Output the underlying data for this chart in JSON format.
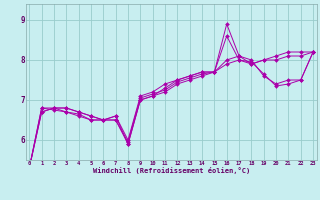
{
  "xlabel": "Windchill (Refroidissement éolien,°C)",
  "bg_color": "#c8eef0",
  "line_color": "#aa00aa",
  "grid_color": "#99cccc",
  "x_ticks": [
    0,
    1,
    2,
    3,
    4,
    5,
    6,
    7,
    8,
    9,
    10,
    11,
    12,
    13,
    14,
    15,
    16,
    17,
    18,
    19,
    20,
    21,
    22,
    23
  ],
  "y_ticks": [
    6,
    7,
    8,
    9
  ],
  "xlim": [
    -0.3,
    23.3
  ],
  "ylim": [
    5.5,
    9.4
  ],
  "series": [
    [
      5.3,
      6.7,
      6.8,
      6.8,
      6.7,
      6.6,
      6.5,
      6.6,
      5.9,
      7.0,
      7.1,
      7.3,
      7.5,
      7.6,
      7.7,
      7.7,
      8.0,
      8.1,
      7.9,
      8.0,
      8.1,
      8.2,
      8.2,
      8.2
    ],
    [
      5.3,
      6.7,
      6.8,
      6.8,
      6.7,
      6.6,
      6.5,
      6.6,
      6.0,
      7.1,
      7.2,
      7.4,
      7.5,
      7.6,
      7.7,
      7.7,
      7.9,
      8.0,
      7.9,
      8.0,
      8.0,
      8.1,
      8.1,
      8.2
    ],
    [
      5.3,
      6.8,
      6.8,
      6.7,
      6.6,
      6.5,
      6.5,
      6.5,
      5.9,
      7.0,
      7.1,
      7.2,
      7.4,
      7.5,
      7.6,
      7.7,
      8.9,
      8.1,
      8.0,
      7.6,
      7.4,
      7.5,
      7.5,
      8.2
    ],
    [
      5.3,
      6.8,
      6.75,
      6.7,
      6.65,
      6.5,
      6.5,
      6.5,
      5.95,
      7.05,
      7.15,
      7.25,
      7.45,
      7.55,
      7.65,
      7.7,
      8.6,
      8.0,
      7.95,
      7.65,
      7.35,
      7.4,
      7.5,
      8.2
    ]
  ]
}
